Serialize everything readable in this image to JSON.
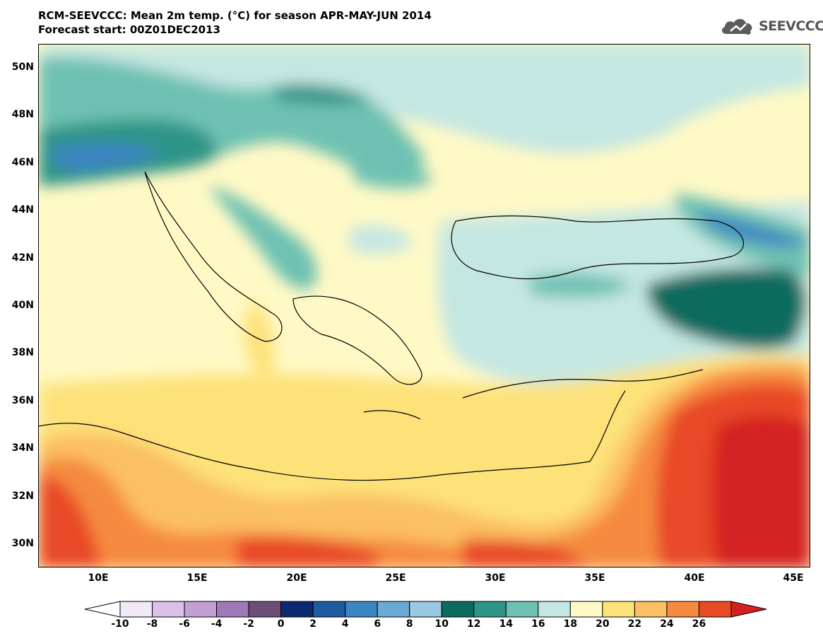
{
  "title": {
    "line1": "RCM-SEEVCCC: Mean 2m temp. (°C) for season APR-MAY-JUN 2014",
    "line2": "Forecast start: 00Z01DEC2013"
  },
  "logo": {
    "text": "SEEVCCC",
    "icon": "cloud-icon"
  },
  "map": {
    "lat_labels": [
      "50N",
      "48N",
      "46N",
      "44N",
      "42N",
      "40N",
      "38N",
      "36N",
      "34N",
      "32N",
      "30N"
    ],
    "lon_labels": [
      "10E",
      "15E",
      "20E",
      "25E",
      "30E",
      "35E",
      "40E",
      "45E"
    ]
  },
  "colorbar": {
    "labels": [
      "-10",
      "-8",
      "-6",
      "-4",
      "-2",
      "0",
      "2",
      "4",
      "6",
      "8",
      "10",
      "12",
      "14",
      "16",
      "18",
      "20",
      "22",
      "24",
      "26"
    ],
    "colors": [
      "#f2e9f7",
      "#dcc0e8",
      "#c3a0d4",
      "#a07ab8",
      "#6b4e78",
      "#0d2a6e",
      "#1f5ba0",
      "#3b85c2",
      "#6aaad4",
      "#9bc8e2",
      "#0d6b5e",
      "#2f9488",
      "#6ec1b2",
      "#c5e7e2",
      "#fff9c6",
      "#fde27a",
      "#fbc062",
      "#f68a40",
      "#e84a26"
    ],
    "under_color": "#ffffff",
    "over_color": "#d42020"
  }
}
